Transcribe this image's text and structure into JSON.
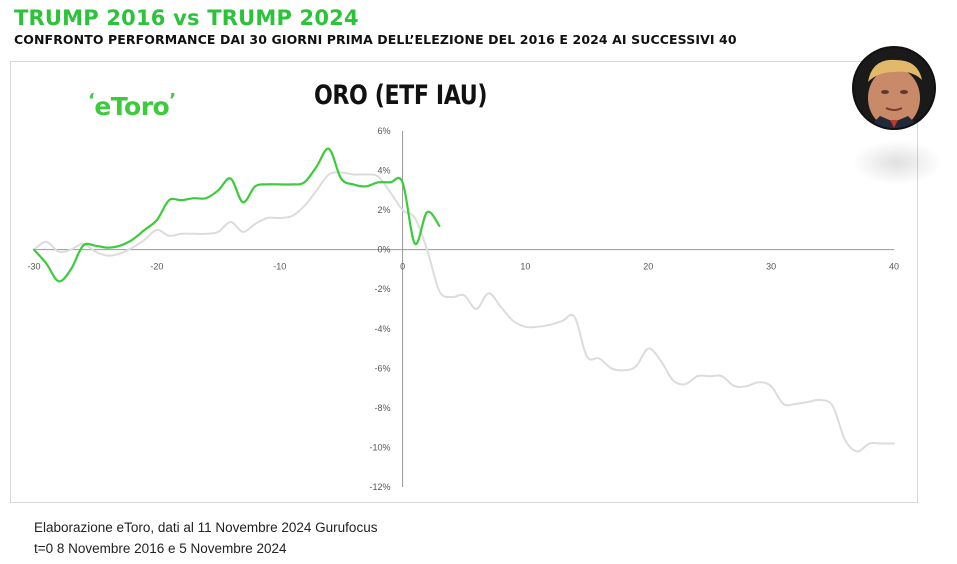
{
  "header": {
    "title": "TRUMP 2016 vs TRUMP 2024",
    "subtitle": "CONFRONTO PERFORMANCE DAI 30 GIORNI PRIMA DELL’ELEZIONE DEL 2016 E 2024 AI SUCCESSIVI 40"
  },
  "logo_text": "eToro",
  "footer": {
    "line1": "Elaborazione eToro, dati al 11 Novembre 2024 Gurufocus",
    "line2": "t=0  8 Novembre 2016 e 5 Novembre 2024"
  },
  "colors": {
    "title_green": "#2cc23a",
    "series_2024": "#3ccb3c",
    "series_2016": "#dcdcdc",
    "axis": "#999999"
  },
  "chart_data": {
    "type": "line",
    "title": "ORO (ETF IAU)",
    "xlabel": "",
    "ylabel": "",
    "xlim": [
      -30,
      40
    ],
    "ylim": [
      -12,
      6
    ],
    "x_ticks": [
      -30,
      -20,
      -10,
      0,
      10,
      20,
      30,
      40
    ],
    "x_tick_labels": [
      "-30",
      "-20",
      "-10",
      "0",
      "10",
      "20",
      "30",
      "40"
    ],
    "y_ticks": [
      6,
      4,
      2,
      0,
      -2,
      -4,
      -6,
      -8,
      -10,
      -12
    ],
    "y_tick_labels": [
      "6%",
      "4%",
      "2%",
      "0%",
      "-2%",
      "-4%",
      "-6%",
      "-8%",
      "-10%",
      "-12%"
    ],
    "grid": false,
    "legend": "none",
    "series": [
      {
        "color": "#dcdcdc",
        "x": [
          -30,
          -29,
          -28,
          -27,
          -26,
          -25,
          -24,
          -23,
          -22,
          -21,
          -20,
          -19,
          -18,
          -17,
          -16,
          -15,
          -14,
          -13,
          -12,
          -11,
          -10,
          -9,
          -8,
          -7,
          -6,
          -5,
          -4,
          -3,
          -2,
          -1,
          0,
          1,
          2,
          3,
          4,
          5,
          6,
          7,
          8,
          9,
          10,
          11,
          12,
          13,
          14,
          15,
          16,
          17,
          18,
          19,
          20,
          21,
          22,
          23,
          24,
          25,
          26,
          27,
          28,
          29,
          30,
          31,
          32,
          33,
          34,
          35,
          36,
          37,
          38,
          39,
          40
        ],
        "values": [
          0.0,
          0.4,
          -0.1,
          0.0,
          0.3,
          -0.1,
          -0.3,
          -0.2,
          0.1,
          0.5,
          1.0,
          0.7,
          0.8,
          0.8,
          0.8,
          0.9,
          1.4,
          0.9,
          1.3,
          1.6,
          1.6,
          1.7,
          2.2,
          3.0,
          3.8,
          3.9,
          3.8,
          3.8,
          3.7,
          2.9,
          2.0,
          1.6,
          0.0,
          -2.1,
          -2.4,
          -2.3,
          -3.0,
          -2.2,
          -2.9,
          -3.6,
          -3.9,
          -3.9,
          -3.8,
          -3.6,
          -3.4,
          -5.4,
          -5.5,
          -6.0,
          -6.1,
          -5.9,
          -5.0,
          -5.6,
          -6.6,
          -6.8,
          -6.4,
          -6.4,
          -6.4,
          -6.9,
          -6.9,
          -6.7,
          -6.9,
          -7.8,
          -7.8,
          -7.7,
          -7.6,
          -7.9,
          -9.6,
          -10.2,
          -9.8,
          -9.8,
          -9.8
        ]
      },
      {
        "color": "#3ccb3c",
        "x": [
          -30,
          -29,
          -28,
          -27,
          -26,
          -25,
          -24,
          -23,
          -22,
          -21,
          -20,
          -19,
          -18,
          -17,
          -16,
          -15,
          -14,
          -13,
          -12,
          -11,
          -10,
          -9,
          -8,
          -7,
          -6,
          -5,
          -4,
          -3,
          -2,
          -1,
          0,
          1,
          2,
          3
        ],
        "values": [
          0.0,
          -0.7,
          -1.6,
          -1.0,
          0.2,
          0.2,
          0.1,
          0.2,
          0.5,
          1.0,
          1.5,
          2.5,
          2.5,
          2.6,
          2.6,
          3.0,
          3.6,
          2.4,
          3.2,
          3.3,
          3.3,
          3.3,
          3.4,
          4.2,
          5.1,
          3.6,
          3.3,
          3.2,
          3.4,
          3.4,
          3.4,
          0.3,
          1.9,
          1.2
        ]
      }
    ]
  }
}
